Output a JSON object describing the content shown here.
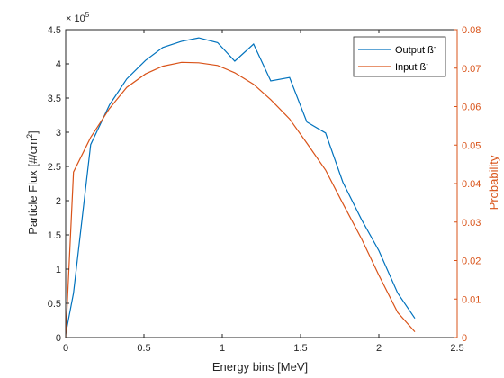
{
  "chart_data": {
    "type": "line",
    "title": "",
    "xlabel": "Energy bins [MeV]",
    "ylabel_left": "Particle Flux [#/cm",
    "ylabel_left_sup": "2",
    "ylabel_left_end": "]",
    "ylabel_right": "Probability",
    "y_exponent_base": "× 10",
    "y_exponent_power": "5",
    "xlim": [
      0,
      2.5
    ],
    "ylim_left": [
      0,
      4.5
    ],
    "ylim_right": [
      0,
      0.08
    ],
    "x_ticks": [
      "0",
      "0.5",
      "1",
      "1.5",
      "2",
      "2.5"
    ],
    "y_left_ticks": [
      "0",
      "0.5",
      "1",
      "1.5",
      "2",
      "2.5",
      "3",
      "3.5",
      "4",
      "4.5"
    ],
    "y_right_ticks": [
      "0",
      "0.01",
      "0.02",
      "0.03",
      "0.04",
      "0.05",
      "0.06",
      "0.07",
      "0.08"
    ],
    "legend_position": "top-right",
    "grid": false,
    "series": [
      {
        "name": "Output ß",
        "name_sup": "-",
        "axis": "left",
        "color": "#0072BD",
        "x": [
          0.0,
          0.05,
          0.16,
          0.28,
          0.39,
          0.51,
          0.62,
          0.74,
          0.85,
          0.97,
          1.08,
          1.2,
          1.31,
          1.43,
          1.54,
          1.66,
          1.77,
          1.89,
          2.0,
          2.12,
          2.23
        ],
        "y": [
          0.05,
          0.65,
          2.82,
          3.4,
          3.78,
          4.05,
          4.24,
          4.33,
          4.38,
          4.31,
          4.04,
          4.29,
          3.75,
          3.8,
          3.15,
          2.99,
          2.27,
          1.72,
          1.27,
          0.65,
          0.28
        ]
      },
      {
        "name": "Input ß",
        "name_sup": "-",
        "axis": "right",
        "color": "#D95319",
        "x": [
          0.0,
          0.05,
          0.16,
          0.28,
          0.39,
          0.51,
          0.62,
          0.74,
          0.85,
          0.97,
          1.08,
          1.2,
          1.31,
          1.43,
          1.54,
          1.66,
          1.77,
          1.89,
          2.0,
          2.12,
          2.23
        ],
        "y": [
          0.0,
          0.043,
          0.052,
          0.0595,
          0.065,
          0.0685,
          0.0705,
          0.0715,
          0.0714,
          0.0707,
          0.0688,
          0.0658,
          0.0618,
          0.0568,
          0.0505,
          0.0435,
          0.0348,
          0.0256,
          0.0162,
          0.0065,
          0.0015
        ]
      }
    ]
  }
}
